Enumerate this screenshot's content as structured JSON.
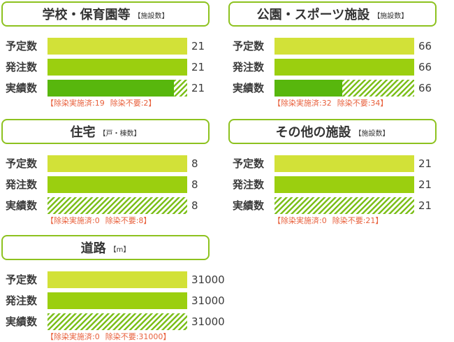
{
  "labels": {
    "planned": "予定数",
    "ordered": "発注数",
    "achieved": "実績数"
  },
  "chart_data": [
    {
      "type": "bar",
      "title": "学校・保育園等",
      "unit": "【施設数】",
      "categories": [
        "予定数",
        "発注数",
        "実績数"
      ],
      "values": [
        21,
        21,
        21
      ],
      "achieved_breakdown": {
        "done": 19,
        "not_required": 2
      },
      "note": {
        "done": "【除染実施済:19",
        "not_required": "除染不要:2】"
      }
    },
    {
      "type": "bar",
      "title": "公園・スポーツ施設",
      "unit": "【施設数】",
      "categories": [
        "予定数",
        "発注数",
        "実績数"
      ],
      "values": [
        66,
        66,
        66
      ],
      "achieved_breakdown": {
        "done": 32,
        "not_required": 34
      },
      "note": {
        "done": "【除染実施済:32",
        "not_required": "除染不要:34】"
      }
    },
    {
      "type": "bar",
      "title": "住宅",
      "unit": "【戸・棟数】",
      "categories": [
        "予定数",
        "発注数",
        "実績数"
      ],
      "values": [
        8,
        8,
        8
      ],
      "achieved_breakdown": {
        "done": 0,
        "not_required": 8
      },
      "note": {
        "done": "【除染実施済:0",
        "not_required": "除染不要:8】"
      }
    },
    {
      "type": "bar",
      "title": "その他の施設",
      "unit": "【施設数】",
      "categories": [
        "予定数",
        "発注数",
        "実績数"
      ],
      "values": [
        21,
        21,
        21
      ],
      "achieved_breakdown": {
        "done": 0,
        "not_required": 21
      },
      "note": {
        "done": "【除染実施済:0",
        "not_required": "除染不要:21】"
      }
    },
    {
      "type": "bar",
      "title": "道路",
      "unit": "【m】",
      "categories": [
        "予定数",
        "発注数",
        "実績数"
      ],
      "values": [
        31000,
        31000,
        31000
      ],
      "achieved_breakdown": {
        "done": 0,
        "not_required": 31000
      },
      "note": {
        "done": "【除染実施済:0",
        "not_required": "除染不要:31000】"
      }
    }
  ],
  "colors": {
    "header_border": "#8dc21f",
    "planned": "#d2e138",
    "ordered": "#9bcf0f",
    "done": "#58b70d",
    "not_required_hatch": "#7cbf1a",
    "note_text": "#e8603c"
  }
}
